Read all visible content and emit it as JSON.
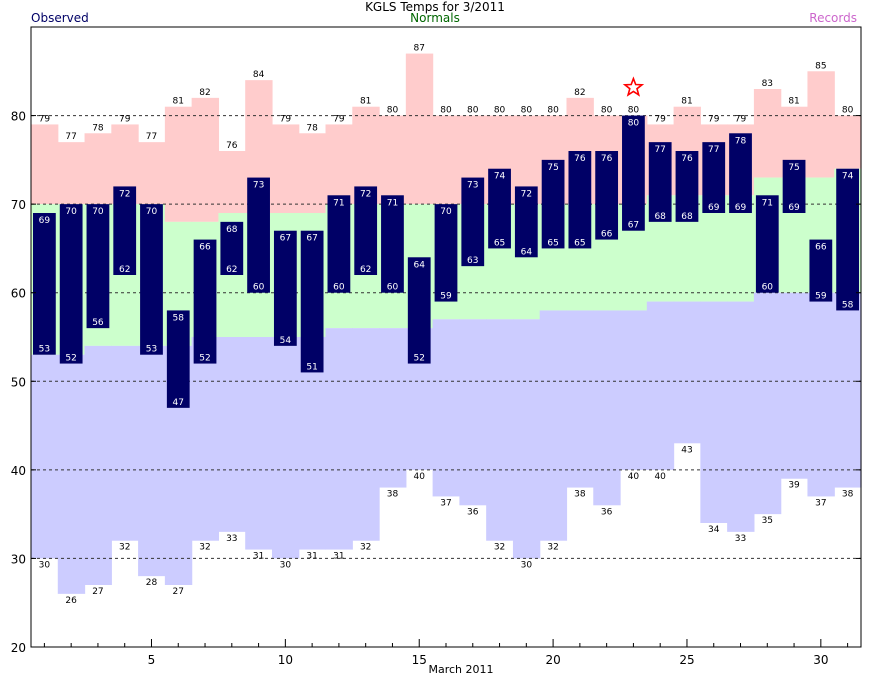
{
  "chart_data": {
    "type": "bar",
    "title": "KGLS Temps for 3/2011",
    "xlabel": "March 2011",
    "ylabel": "",
    "xlim": [
      1,
      31
    ],
    "ylim": [
      20,
      90
    ],
    "x_ticks": [
      5,
      10,
      15,
      20,
      25,
      30
    ],
    "y_ticks": [
      20,
      30,
      40,
      50,
      60,
      70,
      80
    ],
    "grid": "dashed horizontal at each 10",
    "days": [
      1,
      2,
      3,
      4,
      5,
      6,
      7,
      8,
      9,
      10,
      11,
      12,
      13,
      14,
      15,
      16,
      17,
      18,
      19,
      20,
      21,
      22,
      23,
      24,
      25,
      26,
      27,
      28,
      29,
      30,
      31
    ],
    "series": [
      {
        "name": "Observed",
        "role": "observed_high",
        "values": [
          69,
          70,
          70,
          72,
          70,
          58,
          66,
          68,
          73,
          67,
          67,
          71,
          72,
          71,
          64,
          70,
          73,
          74,
          72,
          75,
          76,
          76,
          80,
          77,
          76,
          77,
          78,
          71,
          75,
          66,
          74
        ]
      },
      {
        "name": "Observed",
        "role": "observed_low",
        "values": [
          53,
          52,
          56,
          62,
          53,
          47,
          52,
          62,
          60,
          54,
          51,
          60,
          62,
          60,
          52,
          59,
          63,
          65,
          64,
          65,
          65,
          66,
          67,
          68,
          68,
          69,
          69,
          60,
          69,
          59,
          58
        ]
      },
      {
        "name": "Records",
        "role": "record_high",
        "values": [
          79,
          77,
          78,
          79,
          77,
          81,
          82,
          76,
          84,
          79,
          78,
          79,
          81,
          80,
          87,
          80,
          80,
          80,
          80,
          80,
          82,
          80,
          80,
          79,
          81,
          79,
          79,
          83,
          81,
          85,
          80
        ]
      },
      {
        "name": "Records",
        "role": "record_low",
        "values": [
          30,
          26,
          27,
          32,
          28,
          27,
          32,
          33,
          31,
          30,
          31,
          31,
          32,
          38,
          40,
          37,
          36,
          32,
          30,
          32,
          38,
          36,
          40,
          40,
          43,
          34,
          33,
          35,
          39,
          37,
          38
        ]
      },
      {
        "name": "Normals",
        "role": "normal_high",
        "values": [
          70,
          70,
          70,
          70,
          70,
          68,
          68,
          69,
          69,
          69,
          69,
          70,
          70,
          70,
          70,
          70,
          70,
          70,
          70,
          70,
          70,
          70,
          70,
          71,
          71,
          71,
          71,
          73,
          73,
          73,
          74
        ]
      },
      {
        "name": "Normals",
        "role": "normal_low",
        "values": [
          53,
          53,
          54,
          54,
          54,
          54,
          55,
          55,
          55,
          55,
          55,
          56,
          56,
          56,
          56,
          57,
          57,
          57,
          57,
          58,
          58,
          58,
          58,
          59,
          59,
          59,
          59,
          60,
          60,
          60,
          60
        ]
      }
    ],
    "record_set_marker": {
      "day": 23,
      "value": 80,
      "symbol": "star"
    },
    "colors": {
      "record_band_high": "#ffcccc",
      "normal_band": "#ccffcc",
      "record_band_low": "#ccccff",
      "observed_bar": "#000066",
      "observed_text": "#000066",
      "normals_text": "#006600",
      "records_text": "#cc66cc",
      "star": "#ff0000"
    },
    "legend": [
      "Observed",
      "Normals",
      "Records"
    ],
    "legend_placement": "top"
  }
}
